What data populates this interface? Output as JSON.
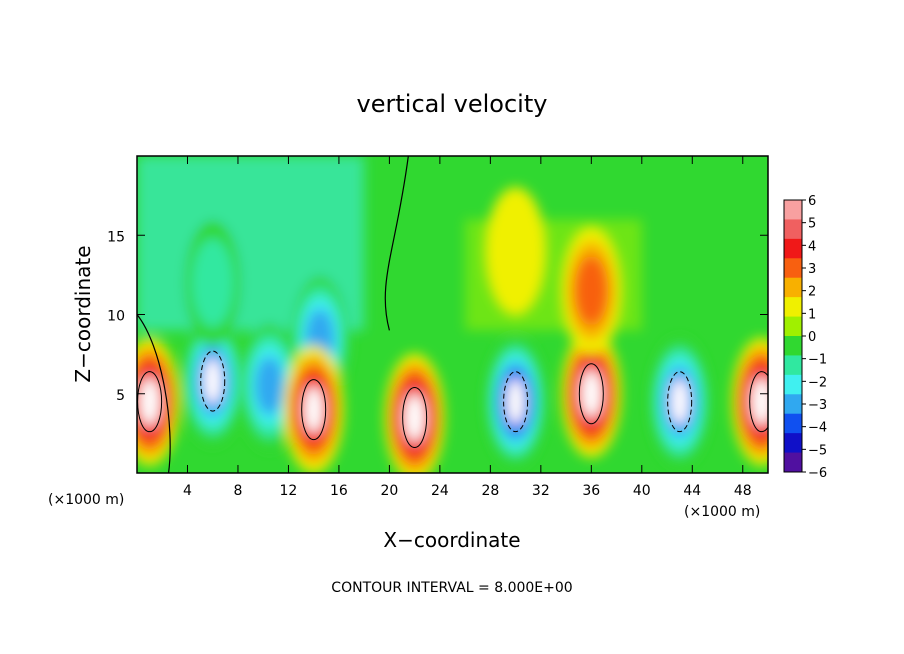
{
  "chart_data": {
    "type": "heatmap",
    "title": "vertical velocity",
    "xlabel": "X−coordinate",
    "ylabel": "Z−coordinate",
    "x_unit_left": "(×1000 m)",
    "x_unit_right": "(×1000 m)",
    "xlim": [
      0,
      50
    ],
    "ylim": [
      0,
      20
    ],
    "xticks": [
      4,
      8,
      12,
      16,
      20,
      24,
      28,
      32,
      36,
      40,
      44,
      48
    ],
    "yticks": [
      5,
      10,
      15
    ],
    "colorbar": {
      "ticks": [
        6,
        5,
        4,
        3,
        2,
        1,
        0,
        -1,
        -2,
        -3,
        -4,
        -5,
        -6
      ],
      "tick_labels": [
        "6",
        "5",
        "4",
        "3",
        "2",
        "1",
        "0",
        "−1",
        "−2",
        "−3",
        "−4",
        "−5",
        "−6"
      ],
      "colors": [
        "#f8a0a0",
        "#f06060",
        "#f01818",
        "#f86010",
        "#f8b000",
        "#f0f000",
        "#a0f000",
        "#30d830",
        "#30e8a0",
        "#40f0f0",
        "#30a8f0",
        "#1050f0",
        "#1010c8",
        "#5010a0"
      ]
    },
    "features": [
      {
        "x": 1.0,
        "z": 4.5,
        "w": 6
      },
      {
        "x": 6.0,
        "z": 5.8,
        "w": -5
      },
      {
        "x": 10.5,
        "z": 5.5,
        "w": -4
      },
      {
        "x": 14.5,
        "z": 8.5,
        "w": -4
      },
      {
        "x": 14.0,
        "z": 4.0,
        "w": 5
      },
      {
        "x": 22.0,
        "z": 3.5,
        "w": 6
      },
      {
        "x": 30.0,
        "z": 4.5,
        "w": -6
      },
      {
        "x": 36.0,
        "z": 5.0,
        "w": 6
      },
      {
        "x": 36.0,
        "z": 11.5,
        "w": 3
      },
      {
        "x": 43.0,
        "z": 4.5,
        "w": -5
      },
      {
        "x": 49.5,
        "z": 4.5,
        "w": 6
      },
      {
        "x": 6.0,
        "z": 12.0,
        "w": -2
      },
      {
        "x": 30.0,
        "z": 14.0,
        "w": 1
      }
    ],
    "annotation": "CONTOUR INTERVAL = 8.000E+00"
  }
}
